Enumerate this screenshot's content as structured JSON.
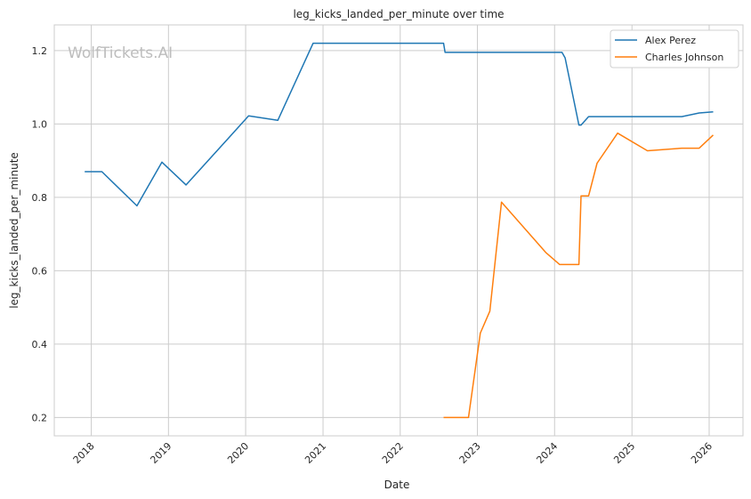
{
  "chart_data": {
    "type": "line",
    "title": "leg_kicks_landed_per_minute over time",
    "xlabel": "Date",
    "ylabel": "leg_kicks_landed_per_minute",
    "watermark": "WolfTickets.AI",
    "x_ticks": [
      "2018",
      "2019",
      "2020",
      "2021",
      "2022",
      "2023",
      "2024",
      "2025",
      "2026"
    ],
    "y_ticks": [
      "0.2",
      "0.4",
      "0.6",
      "0.8",
      "1.0",
      "1.2"
    ],
    "xlim": [
      "2017-07-10",
      "2026-06-10"
    ],
    "ylim": [
      0.15,
      1.27
    ],
    "grid": true,
    "legend_position": "top-right",
    "series": [
      {
        "name": "Alex Perez",
        "color": "#1f77b4",
        "points": [
          [
            "2017-12-01",
            0.87
          ],
          [
            "2018-02-20",
            0.87
          ],
          [
            "2018-08-05",
            0.777
          ],
          [
            "2018-12-01",
            0.896
          ],
          [
            "2019-03-25",
            0.834
          ],
          [
            "2020-01-15",
            1.022
          ],
          [
            "2020-06-01",
            1.01
          ],
          [
            "2020-11-15",
            1.22
          ],
          [
            "2022-07-25",
            1.22
          ],
          [
            "2022-08-01",
            1.195
          ],
          [
            "2024-02-05",
            1.195
          ],
          [
            "2024-02-20",
            1.18
          ],
          [
            "2024-04-25",
            0.997
          ],
          [
            "2024-05-05",
            0.997
          ],
          [
            "2024-06-10",
            1.02
          ],
          [
            "2025-08-25",
            1.02
          ],
          [
            "2025-11-15",
            1.03
          ],
          [
            "2026-01-20",
            1.033
          ]
        ]
      },
      {
        "name": "Charles Johnson",
        "color": "#ff7f0e",
        "points": [
          [
            "2022-07-25",
            0.2
          ],
          [
            "2022-11-20",
            0.2
          ],
          [
            "2023-01-15",
            0.43
          ],
          [
            "2023-03-01",
            0.49
          ],
          [
            "2023-04-25",
            0.787
          ],
          [
            "2023-11-20",
            0.65
          ],
          [
            "2024-01-25",
            0.617
          ],
          [
            "2024-04-25",
            0.617
          ],
          [
            "2024-05-05",
            0.804
          ],
          [
            "2024-06-10",
            0.804
          ],
          [
            "2024-07-20",
            0.893
          ],
          [
            "2024-10-25",
            0.975
          ],
          [
            "2025-03-15",
            0.927
          ],
          [
            "2025-08-25",
            0.934
          ],
          [
            "2025-11-15",
            0.934
          ],
          [
            "2026-01-20",
            0.97
          ]
        ]
      }
    ]
  }
}
